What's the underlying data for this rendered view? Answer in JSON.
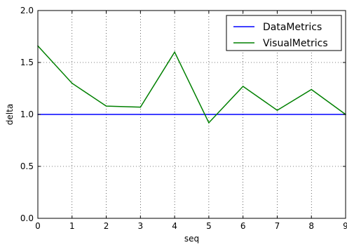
{
  "chart_data": {
    "type": "line",
    "xlabel": "seq",
    "ylabel": "delta",
    "x": [
      0,
      1,
      2,
      3,
      4,
      5,
      6,
      7,
      8,
      9
    ],
    "xlim": [
      0,
      9
    ],
    "ylim": [
      0.0,
      2.0
    ],
    "xticks": [
      "0",
      "1",
      "2",
      "3",
      "4",
      "5",
      "6",
      "7",
      "8",
      "9"
    ],
    "yticks": [
      "0.0",
      "0.5",
      "1.0",
      "1.5",
      "2.0"
    ],
    "grid": true,
    "legend_position": "top-right",
    "series": [
      {
        "name": "DataMetrics",
        "color": "#0000ff",
        "values": [
          1.0,
          1.0,
          1.0,
          1.0,
          1.0,
          1.0,
          1.0,
          1.0,
          1.0,
          1.0
        ]
      },
      {
        "name": "VisualMetrics",
        "color": "#008000",
        "values": [
          1.66,
          1.3,
          1.08,
          1.07,
          1.6,
          0.92,
          1.27,
          1.04,
          1.24,
          1.0
        ]
      }
    ]
  }
}
